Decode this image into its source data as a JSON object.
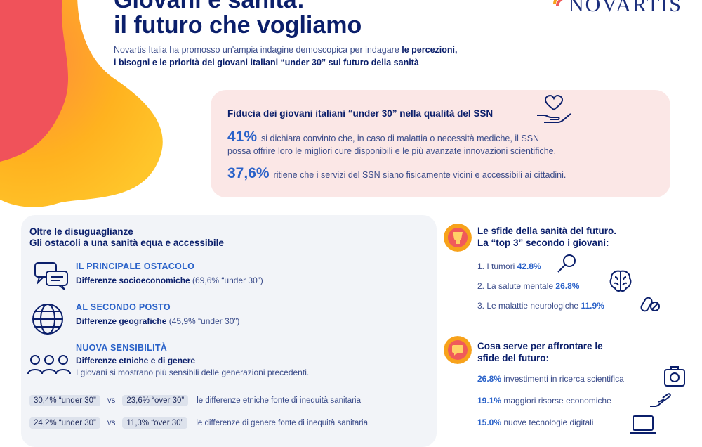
{
  "header": {
    "title_line1": "Giovani e sanità:",
    "title_line2": "il futuro che vogliamo",
    "logo": "NOVARTIS",
    "intro_part1": "Novartis Italia ha promosso un'ampia indagine demoscopica per indagare ",
    "intro_bold1": "le percezioni,",
    "intro_bold2": "i bisogni e le priorità dei giovani italiani “under 30” sul futuro della sanità"
  },
  "fiducia": {
    "title": "Fiducia dei giovani italiani “under 30” nella qualità del SSN",
    "stat1_value": "41%",
    "stat1_text_a": "si dichiara convinto che, in caso di malattia o necessità mediche, il SSN",
    "stat1_text_b": "possa offrire loro le migliori cure disponibili e le più avanzate innovazioni scientifiche.",
    "stat2_value": "37,6%",
    "stat2_text": "ritiene che i servizi del SSN siano fisicamente vicini e accessibili ai cittadini."
  },
  "ostacoli": {
    "title_line1": "Oltre le disuguaglianze",
    "title_line2": "Gli ostacoli a una sanità equa e accessibile",
    "items": [
      {
        "head": "IL PRINCIPALE OSTACOLO",
        "bold": "Differenze socioeconomiche",
        "rest": " (69,6% “under 30”)"
      },
      {
        "head": "AL SECONDO POSTO",
        "bold": "Differenze geografiche",
        "rest": " (45,9% “under 30”)"
      },
      {
        "head": "NUOVA SENSIBILITÀ",
        "bold": "Differenze etniche e di genere",
        "rest": "I giovani si mostrano più sensibili delle generazioni precedenti."
      }
    ],
    "comparisons": [
      {
        "a": "30,4% “under 30”",
        "vs": "vs",
        "b": "23,6% “over 30”",
        "desc": "le differenze etniche fonte di inequità sanitaria"
      },
      {
        "a": "24,2% “under 30”",
        "vs": "vs",
        "b": "11,3% “over 30”",
        "desc": "le differenze di genere fonte di inequità sanitaria"
      }
    ]
  },
  "sfide": {
    "title_line1": "Le sfide della sanità del futuro.",
    "title_line2": "La “top 3” secondo i giovani:",
    "items": [
      {
        "label": "1. I tumori",
        "value": "42.8%"
      },
      {
        "label": "2. La salute mentale",
        "value": "26.8%"
      },
      {
        "label": "3. Le malattie neurologiche",
        "value": "11.9%"
      }
    ]
  },
  "needs": {
    "title_line1": "Cosa serve per affrontare le",
    "title_line2": "sfide del futuro:",
    "items": [
      {
        "value": "26.8%",
        "label": "investimenti in ricerca scientifica"
      },
      {
        "value": "19.1%",
        "label": "maggiori risorse economiche"
      },
      {
        "value": "15.0%",
        "label": "nuove tecnologie digitali"
      }
    ]
  },
  "colors": {
    "navy": "#0b1f6b",
    "accent_blue": "#2a62c9",
    "pink_panel": "#fbe7e6",
    "grey_panel": "#f2f4f8",
    "coral": "#f05a5a",
    "orange": "#f7a21b"
  }
}
